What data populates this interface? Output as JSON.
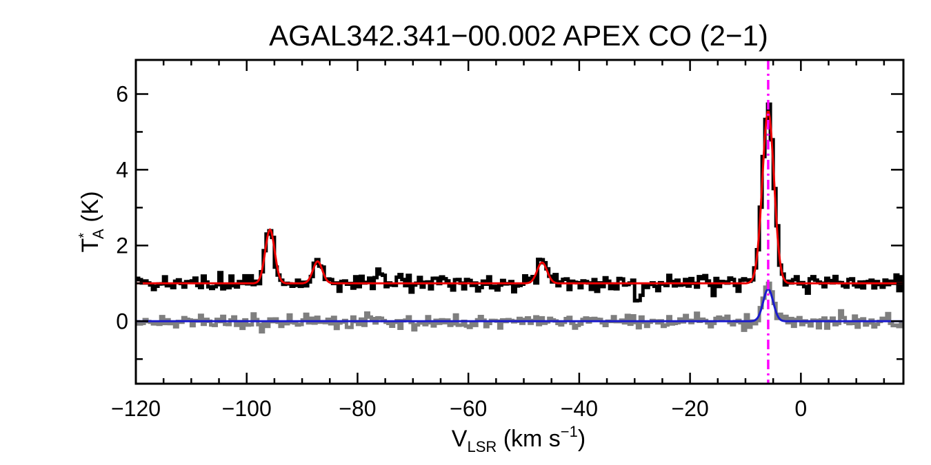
{
  "chart_data": {
    "type": "line",
    "title": "AGAL342.341−00.002  APEX CO (2−1)",
    "xlabel": {
      "main": "V",
      "sub": "LSR",
      "unit_open": " (km s",
      "sup": "−1",
      "unit_close": ")"
    },
    "ylabel": {
      "main": "T",
      "sup": "*",
      "sub": "A",
      "unit": " (K)"
    },
    "xlim": [
      -120,
      18.5
    ],
    "ylim": [
      -1.65,
      6.9
    ],
    "xticks": [
      -120,
      -100,
      -80,
      -60,
      -40,
      -20,
      0
    ],
    "xtick_labels": [
      "−120",
      "−100",
      "−80",
      "−60",
      "−40",
      "−20",
      "0"
    ],
    "yticks": [
      0,
      2,
      4,
      6
    ],
    "ytick_labels": [
      "0",
      "2",
      "4",
      "6"
    ],
    "grid": false,
    "colors": {
      "spectrum": "#000000",
      "fit": "#ee0000",
      "residual": "#7f7f7f",
      "residual_fit": "#1a1acc",
      "marker": "#ff00ff"
    },
    "series": [
      {
        "kind": "gaussian_fit",
        "color_key": "fit",
        "baseline": 1.0,
        "components": [
          {
            "center": -95.8,
            "amplitude": 1.42,
            "sigma": 0.85
          },
          {
            "center": -87.2,
            "amplitude": 0.58,
            "sigma": 0.85
          },
          {
            "center": -46.7,
            "amplitude": 0.55,
            "sigma": 0.9
          },
          {
            "center": -5.9,
            "amplitude": 4.55,
            "sigma": 1.05
          }
        ]
      },
      {
        "kind": "spectrum_histogram",
        "color_key": "spectrum",
        "baseline": 1.0,
        "channel_width": 0.5,
        "noise_rms": 0.11,
        "components": [
          {
            "center": -95.8,
            "amplitude": 1.45,
            "sigma": 0.8
          },
          {
            "center": -87.2,
            "amplitude": 0.6,
            "sigma": 0.8
          },
          {
            "center": -76.0,
            "amplitude": 0.35,
            "sigma": 0.8
          },
          {
            "center": -46.7,
            "amplitude": 0.62,
            "sigma": 0.85
          },
          {
            "center": -29.2,
            "amplitude": -0.55,
            "sigma": 0.5
          },
          {
            "center": -5.9,
            "amplitude": 4.6,
            "sigma": 1.05
          }
        ]
      },
      {
        "kind": "gaussian_fit",
        "color_key": "residual_fit",
        "baseline": 0.0,
        "components": [
          {
            "center": -5.9,
            "amplitude": 0.85,
            "sigma": 0.9
          }
        ]
      },
      {
        "kind": "spectrum_histogram",
        "color_key": "residual",
        "baseline": 0.0,
        "channel_width": 0.5,
        "noise_rms": 0.1,
        "components": [
          {
            "center": -5.9,
            "amplitude": 0.9,
            "sigma": 0.85
          }
        ]
      }
    ],
    "marker_line": {
      "x": -5.9,
      "style": "dash-dot"
    }
  }
}
